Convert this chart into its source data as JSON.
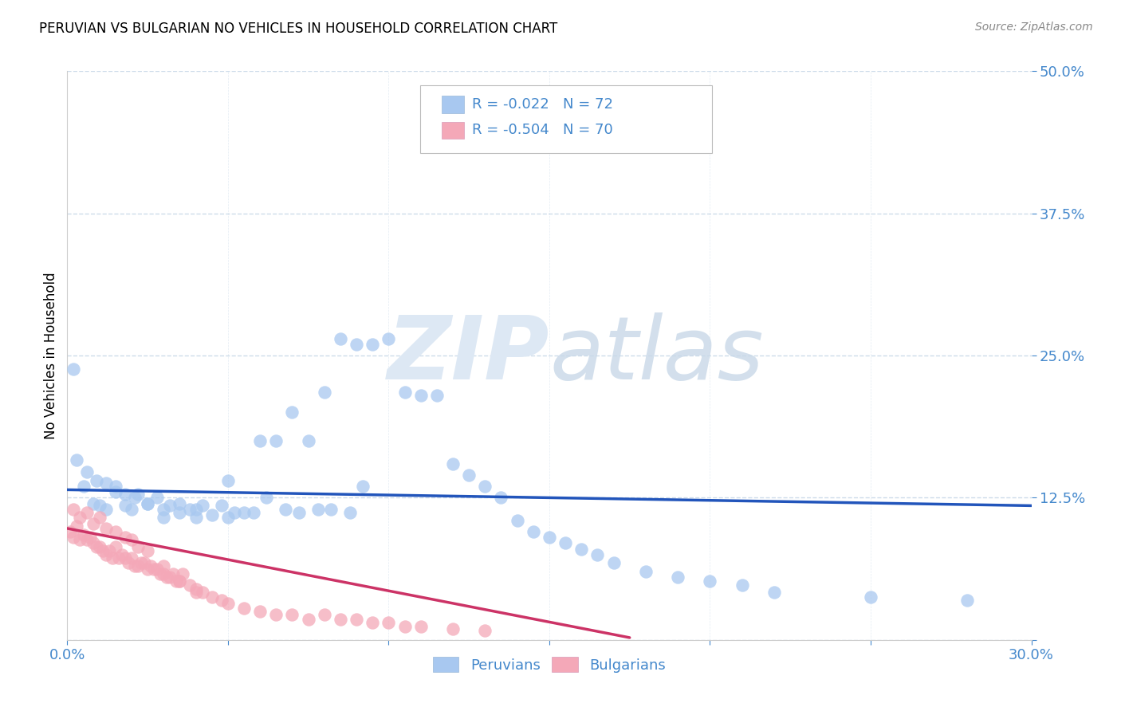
{
  "title": "PERUVIAN VS BULGARIAN NO VEHICLES IN HOUSEHOLD CORRELATION CHART",
  "source": "Source: ZipAtlas.com",
  "ylabel": "No Vehicles in Household",
  "xlim": [
    0.0,
    0.3
  ],
  "ylim": [
    0.0,
    0.5
  ],
  "xticks": [
    0.0,
    0.05,
    0.1,
    0.15,
    0.2,
    0.25,
    0.3
  ],
  "yticks": [
    0.0,
    0.125,
    0.25,
    0.375,
    0.5
  ],
  "ytick_labels": [
    "",
    "12.5%",
    "25.0%",
    "37.5%",
    "50.0%"
  ],
  "xtick_labels": [
    "0.0%",
    "",
    "",
    "",
    "",
    "",
    "30.0%"
  ],
  "legend_R1": "-0.022",
  "legend_N1": "72",
  "legend_R2": "-0.504",
  "legend_N2": "70",
  "blue_color": "#a8c8f0",
  "pink_color": "#f4a8b8",
  "line_blue": "#2255bb",
  "line_pink": "#cc3366",
  "axis_color": "#4488cc",
  "grid_color": "#c8d8e8",
  "watermark_color": "#dde8f4",
  "peruvian_scatter_x": [
    0.002,
    0.005,
    0.008,
    0.01,
    0.012,
    0.015,
    0.018,
    0.02,
    0.022,
    0.025,
    0.028,
    0.03,
    0.032,
    0.035,
    0.038,
    0.04,
    0.042,
    0.045,
    0.048,
    0.05,
    0.052,
    0.055,
    0.058,
    0.06,
    0.062,
    0.065,
    0.068,
    0.07,
    0.072,
    0.075,
    0.078,
    0.08,
    0.082,
    0.085,
    0.088,
    0.09,
    0.092,
    0.095,
    0.1,
    0.105,
    0.11,
    0.115,
    0.12,
    0.125,
    0.13,
    0.135,
    0.14,
    0.145,
    0.15,
    0.155,
    0.16,
    0.165,
    0.17,
    0.18,
    0.19,
    0.2,
    0.21,
    0.22,
    0.25,
    0.28,
    0.003,
    0.006,
    0.009,
    0.012,
    0.015,
    0.018,
    0.021,
    0.025,
    0.03,
    0.035,
    0.04,
    0.05
  ],
  "peruvian_scatter_y": [
    0.238,
    0.135,
    0.12,
    0.118,
    0.115,
    0.13,
    0.118,
    0.115,
    0.128,
    0.12,
    0.125,
    0.108,
    0.118,
    0.12,
    0.115,
    0.115,
    0.118,
    0.11,
    0.118,
    0.108,
    0.112,
    0.112,
    0.112,
    0.175,
    0.125,
    0.175,
    0.115,
    0.2,
    0.112,
    0.175,
    0.115,
    0.218,
    0.115,
    0.265,
    0.112,
    0.26,
    0.135,
    0.26,
    0.265,
    0.218,
    0.215,
    0.215,
    0.155,
    0.145,
    0.135,
    0.125,
    0.105,
    0.095,
    0.09,
    0.085,
    0.08,
    0.075,
    0.068,
    0.06,
    0.055,
    0.052,
    0.048,
    0.042,
    0.038,
    0.035,
    0.158,
    0.148,
    0.14,
    0.138,
    0.135,
    0.128,
    0.125,
    0.12,
    0.115,
    0.112,
    0.108,
    0.14
  ],
  "bulgarian_scatter_x": [
    0.001,
    0.002,
    0.003,
    0.004,
    0.005,
    0.006,
    0.007,
    0.008,
    0.009,
    0.01,
    0.011,
    0.012,
    0.013,
    0.014,
    0.015,
    0.016,
    0.017,
    0.018,
    0.019,
    0.02,
    0.021,
    0.022,
    0.023,
    0.024,
    0.025,
    0.026,
    0.027,
    0.028,
    0.029,
    0.03,
    0.031,
    0.032,
    0.033,
    0.034,
    0.035,
    0.036,
    0.038,
    0.04,
    0.042,
    0.045,
    0.048,
    0.05,
    0.055,
    0.06,
    0.065,
    0.07,
    0.075,
    0.08,
    0.085,
    0.09,
    0.095,
    0.1,
    0.105,
    0.11,
    0.12,
    0.13,
    0.002,
    0.004,
    0.006,
    0.008,
    0.01,
    0.012,
    0.015,
    0.018,
    0.02,
    0.022,
    0.025,
    0.03,
    0.035,
    0.04
  ],
  "bulgarian_scatter_y": [
    0.095,
    0.09,
    0.1,
    0.088,
    0.092,
    0.088,
    0.09,
    0.085,
    0.082,
    0.082,
    0.078,
    0.075,
    0.078,
    0.072,
    0.082,
    0.072,
    0.075,
    0.072,
    0.068,
    0.072,
    0.065,
    0.065,
    0.068,
    0.068,
    0.062,
    0.065,
    0.062,
    0.062,
    0.058,
    0.058,
    0.055,
    0.055,
    0.058,
    0.052,
    0.052,
    0.058,
    0.048,
    0.045,
    0.042,
    0.038,
    0.035,
    0.032,
    0.028,
    0.025,
    0.022,
    0.022,
    0.018,
    0.022,
    0.018,
    0.018,
    0.015,
    0.015,
    0.012,
    0.012,
    0.01,
    0.008,
    0.115,
    0.108,
    0.112,
    0.102,
    0.108,
    0.098,
    0.095,
    0.09,
    0.088,
    0.082,
    0.078,
    0.065,
    0.052,
    0.042
  ],
  "blue_trend_x": [
    0.0,
    0.3
  ],
  "blue_trend_y": [
    0.132,
    0.118
  ],
  "pink_trend_x": [
    0.0,
    0.175
  ],
  "pink_trend_y": [
    0.098,
    0.002
  ]
}
